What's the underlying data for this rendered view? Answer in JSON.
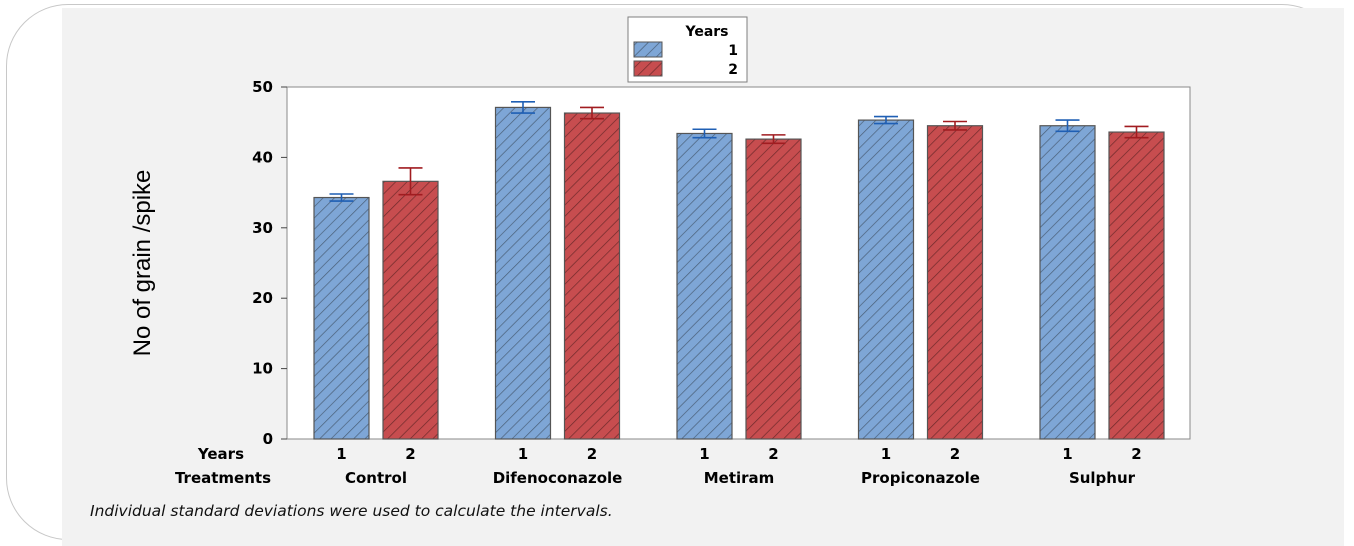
{
  "chart_data": {
    "type": "bar",
    "ylabel": "No of grain /spike",
    "ylim": [
      0,
      50
    ],
    "yticks": [
      0,
      10,
      20,
      30,
      40,
      50
    ],
    "row_labels": {
      "years": "Years",
      "treatments": "Treatments"
    },
    "categories": [
      "Control",
      "Difenoconazole",
      "Metiram",
      "Propiconazole",
      "Sulphur"
    ],
    "legend": {
      "title": "Years",
      "placement": "top-center"
    },
    "series": [
      {
        "name": "1",
        "color": "#7ea6d6",
        "values": [
          34.3,
          47.1,
          43.4,
          45.3,
          44.5
        ],
        "error": [
          0.5,
          0.8,
          0.6,
          0.5,
          0.8
        ]
      },
      {
        "name": "2",
        "color": "#c74d4f",
        "values": [
          36.6,
          46.3,
          42.6,
          44.5,
          43.6
        ],
        "error": [
          1.9,
          0.8,
          0.6,
          0.6,
          0.8
        ]
      }
    ],
    "error_colors": {
      "1": "#1f5fb4",
      "2": "#a11c20"
    },
    "footnote": "Individual standard deviations were used to calculate the intervals."
  }
}
